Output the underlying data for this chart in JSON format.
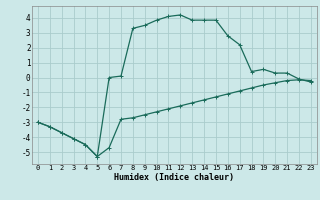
{
  "xlabel": "Humidex (Indice chaleur)",
  "background_color": "#cce8e8",
  "grid_color": "#aacccc",
  "line_color": "#1a6b5a",
  "xlim": [
    -0.5,
    23.5
  ],
  "ylim": [
    -5.8,
    4.8
  ],
  "xticks": [
    0,
    1,
    2,
    3,
    4,
    5,
    6,
    7,
    8,
    9,
    10,
    11,
    12,
    13,
    14,
    15,
    16,
    17,
    18,
    19,
    20,
    21,
    22,
    23
  ],
  "yticks": [
    -5,
    -4,
    -3,
    -2,
    -1,
    0,
    1,
    2,
    3,
    4
  ],
  "line1_x": [
    0,
    1,
    2,
    3,
    4,
    5,
    6,
    7,
    8,
    9,
    10,
    11,
    12,
    13,
    14,
    15,
    16,
    17,
    18,
    19,
    20,
    21,
    22,
    23
  ],
  "line1_y": [
    -3.0,
    -3.3,
    -3.7,
    -4.1,
    -4.5,
    -5.3,
    -4.7,
    -2.8,
    -2.7,
    -2.5,
    -2.3,
    -2.1,
    -1.9,
    -1.7,
    -1.5,
    -1.3,
    -1.1,
    -0.9,
    -0.7,
    -0.5,
    -0.35,
    -0.2,
    -0.15,
    -0.2
  ],
  "line2_x": [
    0,
    1,
    2,
    3,
    4,
    5,
    6,
    7,
    8,
    9,
    10,
    11,
    12,
    13,
    14,
    15,
    16,
    17,
    18,
    19,
    20,
    21,
    22,
    23
  ],
  "line2_y": [
    -3.0,
    -3.3,
    -3.7,
    -4.1,
    -4.5,
    -5.3,
    0.0,
    0.1,
    3.3,
    3.5,
    3.85,
    4.1,
    4.2,
    3.85,
    3.85,
    3.85,
    2.8,
    2.2,
    0.4,
    0.55,
    0.3,
    0.3,
    -0.1,
    -0.3
  ],
  "font_family": "monospace",
  "tick_fontsize": 5.0,
  "xlabel_fontsize": 6.0
}
